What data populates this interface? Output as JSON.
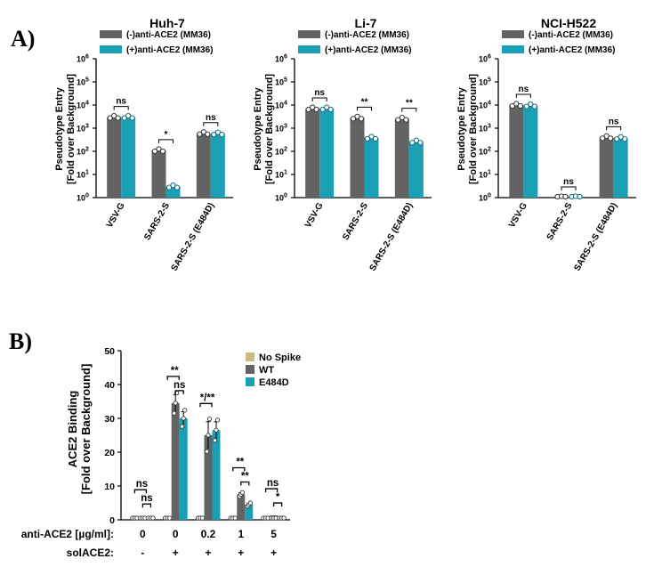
{
  "colors": {
    "grey": "#636363",
    "teal": "#1b9fb5",
    "tan": "#c9bd84"
  },
  "panel_a_label": "A)",
  "panel_b_label": "B)",
  "chart_data": [
    {
      "type": "bar",
      "title": "Huh-7",
      "ylabel_line1": "Pseudotype Entry",
      "ylabel_line2": "[Fold over Background]",
      "yscale": "log",
      "ylim": [
        1,
        1000000
      ],
      "ytick_bases": [
        "10",
        "10",
        "10",
        "10",
        "10",
        "10",
        "10"
      ],
      "ytick_exps": [
        "0",
        "1",
        "2",
        "3",
        "4",
        "5",
        "6"
      ],
      "categories": [
        "VSV-G",
        "SARS-2-S",
        "SARS-2-S (E484D)"
      ],
      "series": [
        {
          "name": "(-)anti-ACE2 (MM36)",
          "color": "#636363",
          "values": [
            3000,
            110,
            600
          ]
        },
        {
          "name": "(+)anti-ACE2 (MM36)",
          "color": "#1b9fb5",
          "values": [
            3000,
            3,
            580
          ]
        }
      ],
      "significance": [
        "ns",
        "*",
        "ns"
      ]
    },
    {
      "type": "bar",
      "title": "Li-7",
      "ylabel_line1": "Pseudotype Entry",
      "ylabel_line2": "[Fold over Background]",
      "yscale": "log",
      "ylim": [
        1,
        1000000
      ],
      "ytick_bases": [
        "10",
        "10",
        "10",
        "10",
        "10",
        "10",
        "10"
      ],
      "ytick_exps": [
        "0",
        "1",
        "2",
        "3",
        "4",
        "5",
        "6"
      ],
      "categories": [
        "VSV-G",
        "SARS-2-S",
        "SARS-2-S (E484D)"
      ],
      "series": [
        {
          "name": "(-)anti-ACE2 (MM36)",
          "color": "#636363",
          "values": [
            7000,
            2800,
            2500
          ]
        },
        {
          "name": "(+)anti-ACE2 (MM36)",
          "color": "#1b9fb5",
          "values": [
            7000,
            380,
            260
          ]
        }
      ],
      "significance": [
        "ns",
        "**",
        "**"
      ]
    },
    {
      "type": "bar",
      "title": "NCI-H522",
      "ylabel_line1": "Pseudotype Entry",
      "ylabel_line2": "[Fold over Background]",
      "yscale": "log",
      "ylim": [
        1,
        1000000
      ],
      "ytick_bases": [
        "10",
        "10",
        "10",
        "10",
        "10",
        "10",
        "10"
      ],
      "ytick_exps": [
        "0",
        "1",
        "2",
        "3",
        "4",
        "5",
        "6"
      ],
      "categories": [
        "VSV-G",
        "SARS-2-S",
        "SARS-2-S (E484D)"
      ],
      "series": [
        {
          "name": "(-)anti-ACE2 (MM36)",
          "color": "#636363",
          "values": [
            10000,
            1,
            400
          ]
        },
        {
          "name": "(+)anti-ACE2 (MM36)",
          "color": "#1b9fb5",
          "values": [
            9500,
            1,
            370
          ]
        }
      ],
      "significance": [
        "ns",
        "ns",
        "ns"
      ]
    },
    {
      "type": "bar",
      "title": "",
      "ylabel_line1": "ACE2 Binding",
      "ylabel_line2": "[Fold over Background]",
      "ylim": [
        0,
        50
      ],
      "yticks": [
        "0",
        "10",
        "20",
        "30",
        "40",
        "50"
      ],
      "legend": [
        "No Spike",
        "WT",
        "E484D"
      ],
      "row1_label": "anti-ACE2 [µg/ml]:",
      "row2_label": "solACE2:",
      "categories": [
        "0",
        "0",
        "0.2",
        "1",
        "5"
      ],
      "solACE2": [
        "-",
        "+",
        "+",
        "+",
        "+"
      ],
      "series": [
        {
          "name": "No Spike",
          "color": "#c9bd84",
          "values": [
            1,
            1,
            1,
            1,
            1
          ]
        },
        {
          "name": "WT",
          "color": "#636363",
          "values": [
            1,
            34.5,
            25,
            7.5,
            1.3
          ]
        },
        {
          "name": "E484D",
          "color": "#1b9fb5",
          "values": [
            1,
            30,
            26.5,
            4.5,
            1
          ]
        }
      ],
      "errors": {
        "WT": [
          0.2,
          2.5,
          4,
          0.5,
          0.2
        ],
        "E484D": [
          0.2,
          2,
          2.5,
          0.4,
          0.1
        ]
      },
      "significance_upper": [
        "ns",
        "**",
        "*/**",
        "**",
        "ns"
      ],
      "significance_lower": [
        "ns",
        "ns",
        "",
        "**",
        "*"
      ]
    }
  ]
}
